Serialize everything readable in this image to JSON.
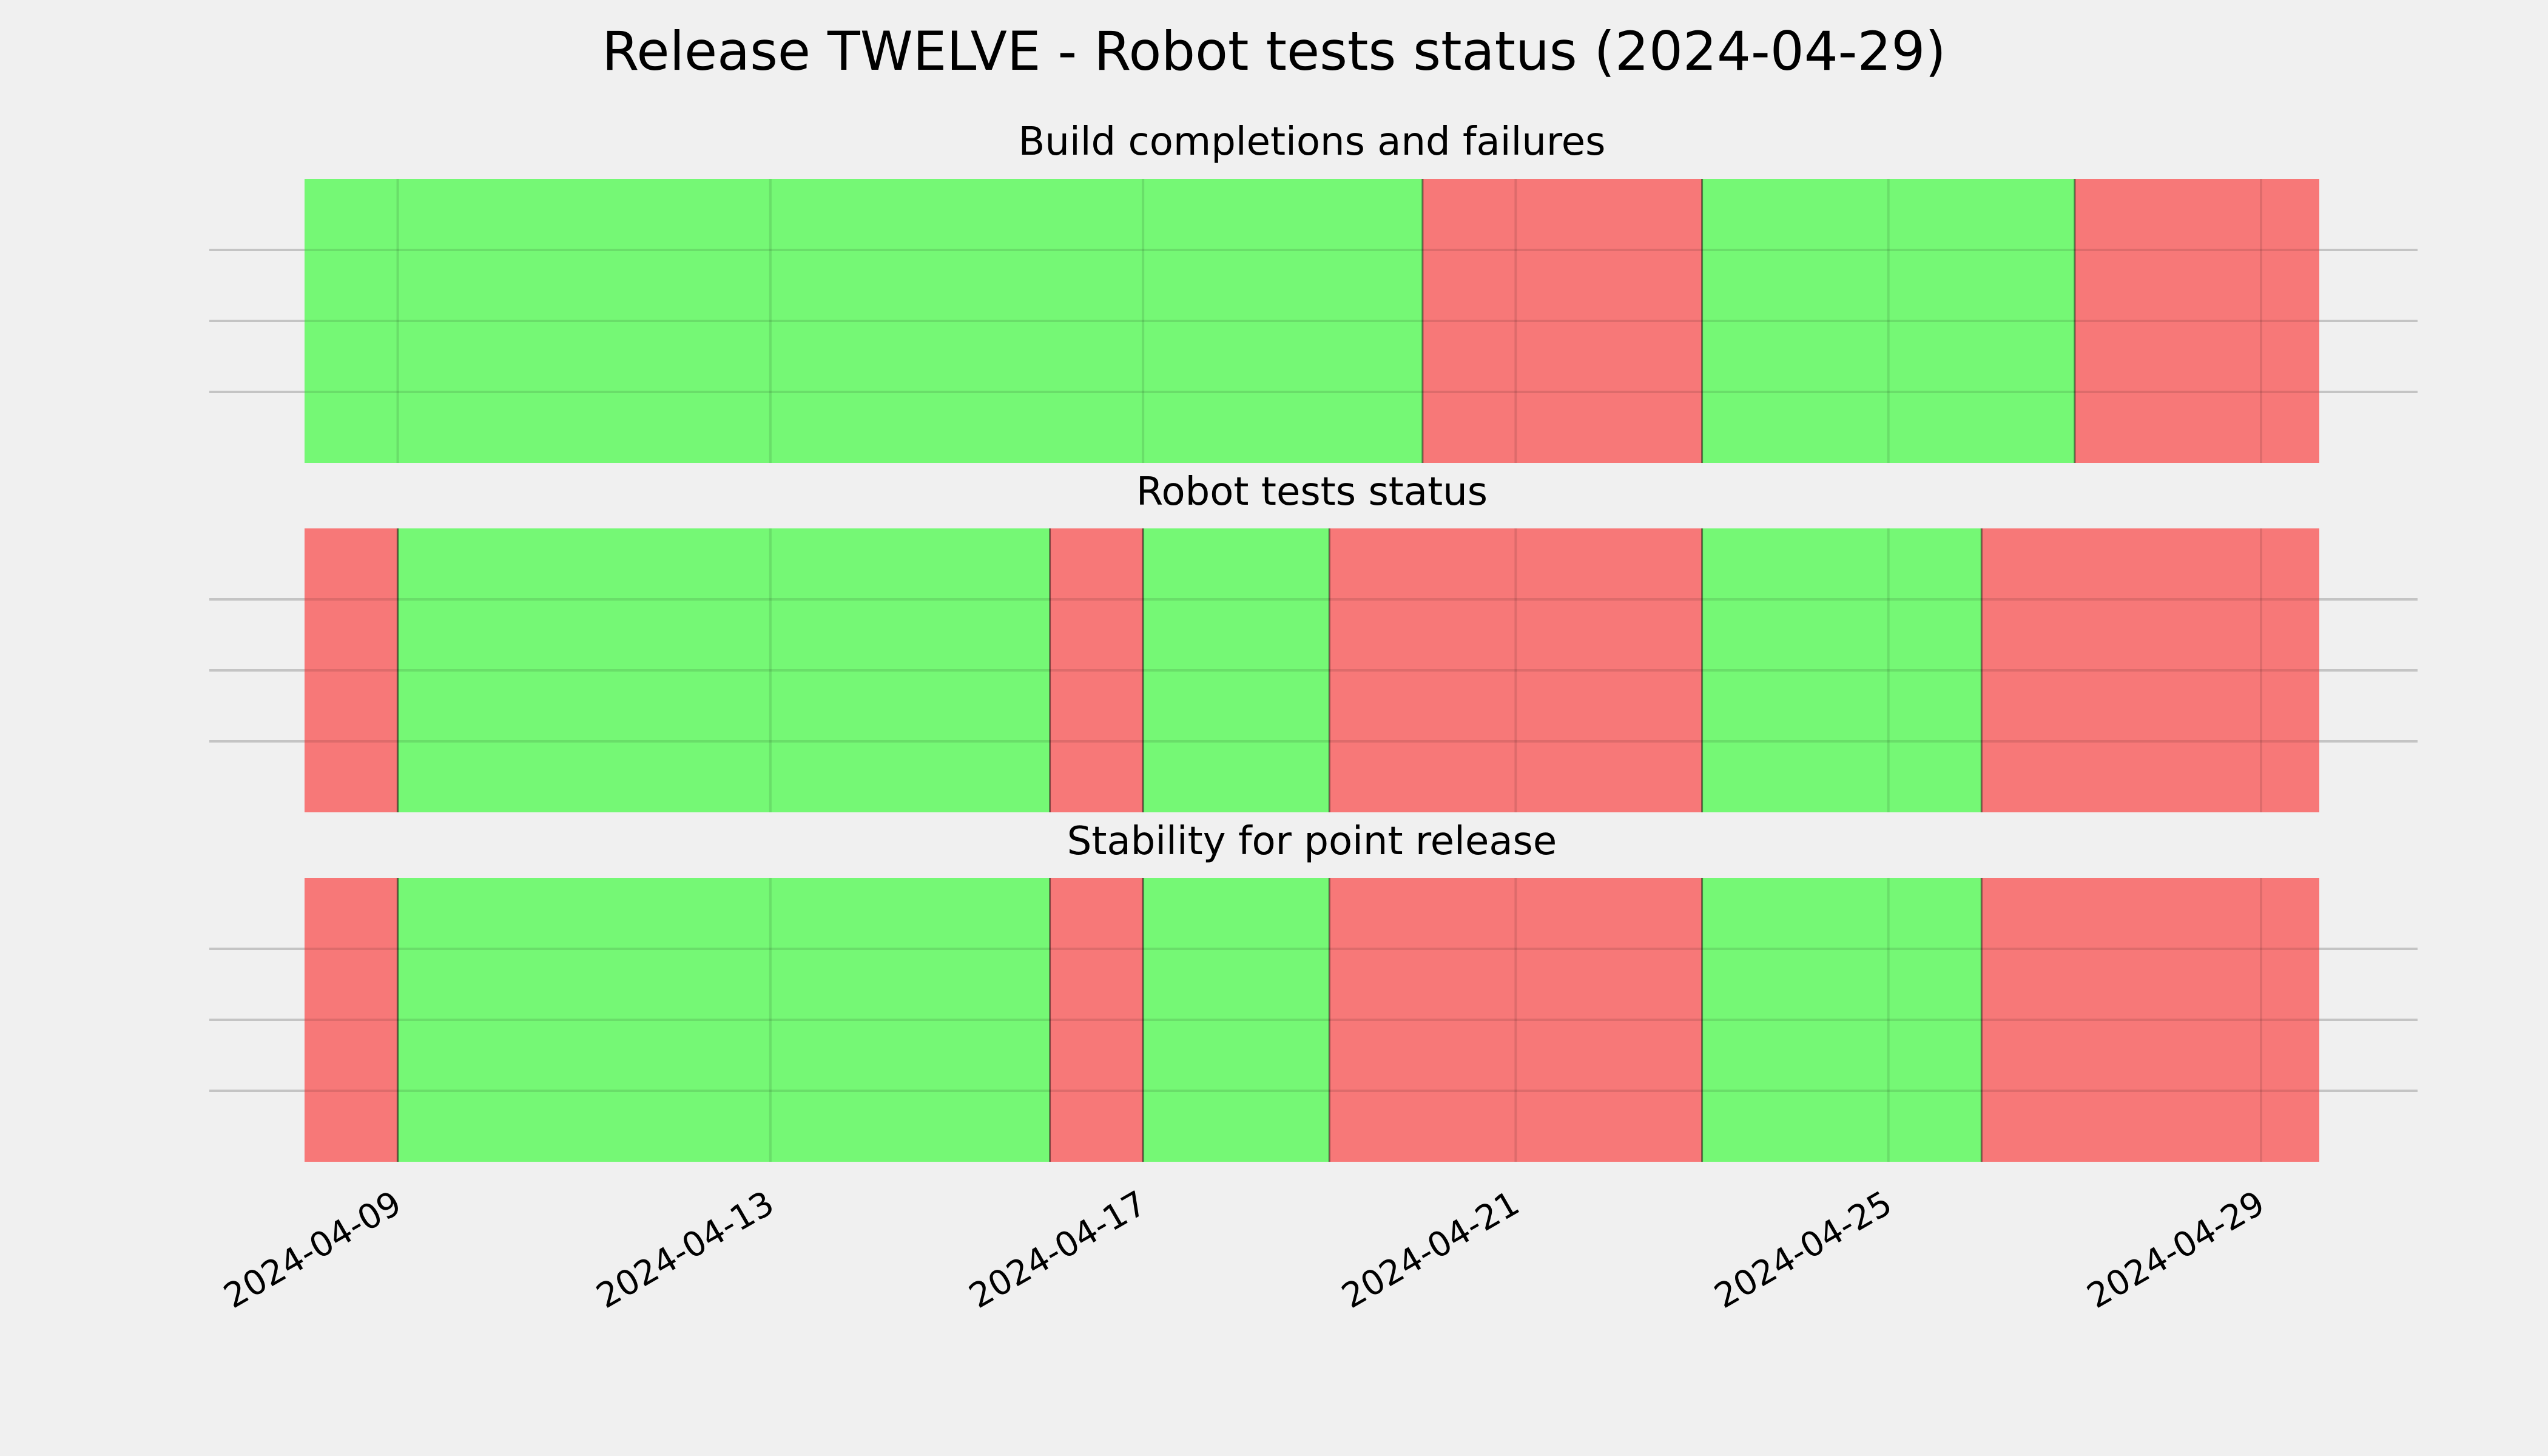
{
  "chart_data": {
    "type": "timeline",
    "title": "Release TWELVE - Robot tests status (2024-04-29)",
    "date_range": [
      "2024-04-08",
      "2024-04-29T15:00:00"
    ],
    "x_ticks": [
      "2024-04-09",
      "2024-04-13",
      "2024-04-17",
      "2024-04-21",
      "2024-04-25",
      "2024-04-29"
    ],
    "status_colors": {
      "pass": "#75f875",
      "fail": "#f77878"
    },
    "panels": [
      {
        "title": "Build completions and failures",
        "segments": [
          {
            "start": "2024-04-08",
            "end": "2024-04-20",
            "status": "pass"
          },
          {
            "start": "2024-04-20",
            "end": "2024-04-23",
            "status": "fail"
          },
          {
            "start": "2024-04-23",
            "end": "2024-04-27",
            "status": "pass"
          },
          {
            "start": "2024-04-27",
            "end": "2024-04-29T15:00:00",
            "status": "fail"
          }
        ]
      },
      {
        "title": "Robot tests status",
        "segments": [
          {
            "start": "2024-04-08",
            "end": "2024-04-09",
            "status": "fail"
          },
          {
            "start": "2024-04-09",
            "end": "2024-04-16",
            "status": "pass"
          },
          {
            "start": "2024-04-16",
            "end": "2024-04-17",
            "status": "fail"
          },
          {
            "start": "2024-04-17",
            "end": "2024-04-19",
            "status": "pass"
          },
          {
            "start": "2024-04-19",
            "end": "2024-04-23",
            "status": "fail"
          },
          {
            "start": "2024-04-23",
            "end": "2024-04-26",
            "status": "pass"
          },
          {
            "start": "2024-04-26",
            "end": "2024-04-29T15:00:00",
            "status": "fail"
          }
        ]
      },
      {
        "title": "Stability for point release",
        "segments": [
          {
            "start": "2024-04-08",
            "end": "2024-04-09",
            "status": "fail"
          },
          {
            "start": "2024-04-09",
            "end": "2024-04-16",
            "status": "pass"
          },
          {
            "start": "2024-04-16",
            "end": "2024-04-17",
            "status": "fail"
          },
          {
            "start": "2024-04-17",
            "end": "2024-04-19",
            "status": "pass"
          },
          {
            "start": "2024-04-19",
            "end": "2024-04-23",
            "status": "fail"
          },
          {
            "start": "2024-04-23",
            "end": "2024-04-26",
            "status": "pass"
          },
          {
            "start": "2024-04-26",
            "end": "2024-04-29T15:00:00",
            "status": "fail"
          }
        ]
      }
    ]
  }
}
